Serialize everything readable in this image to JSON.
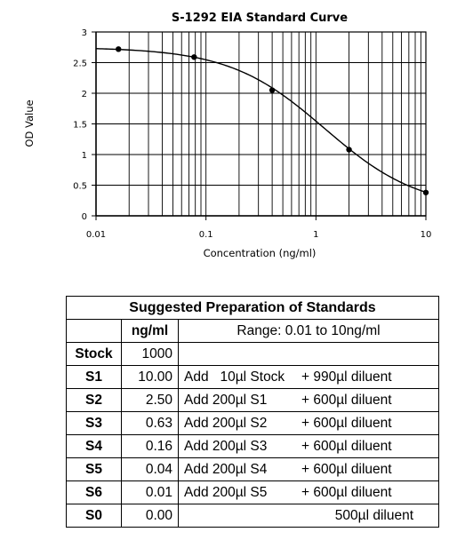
{
  "chart_data": {
    "type": "scatter",
    "title": "S-1292 EIA Standard Curve",
    "xlabel": "Concentration (ng/ml)",
    "ylabel": "OD Value",
    "x_scale": "log",
    "xlim": [
      0.01,
      10
    ],
    "ylim": [
      0,
      3
    ],
    "x_ticks": [
      "0.01",
      "0.1",
      "1",
      "10"
    ],
    "y_ticks": [
      "0",
      "0.5",
      "1",
      "1.5",
      "2",
      "2.5",
      "3"
    ],
    "grid": true,
    "series": [
      {
        "points": [
          {
            "x": 0.016,
            "y": 2.72
          },
          {
            "x": 0.078,
            "y": 2.59
          },
          {
            "x": 0.4,
            "y": 2.05
          },
          {
            "x": 2.0,
            "y": 1.08
          },
          {
            "x": 10,
            "y": 0.38
          }
        ],
        "fit_curve": {
          "type": "4pl",
          "top": 2.75,
          "bottom": 0.1,
          "ec50": 1.2,
          "hill": 1.0
        },
        "color": "#000000"
      }
    ]
  },
  "table": {
    "title": "Suggested Preparation of Standards",
    "conc_header": "ng/ml",
    "range_header": "Range: 0.01 to 10ng/ml",
    "rows": [
      {
        "label": "Stock",
        "conc": "1000",
        "add": "",
        "diluent": ""
      },
      {
        "label": "S1",
        "conc": "10.00",
        "add": "Add   10µl Stock",
        "diluent": "+ 990µl diluent"
      },
      {
        "label": "S2",
        "conc": "2.50",
        "add": "Add 200µl S1",
        "diluent": "+ 600µl diluent"
      },
      {
        "label": "S3",
        "conc": "0.63",
        "add": "Add 200µl S2",
        "diluent": "+ 600µl diluent"
      },
      {
        "label": "S4",
        "conc": "0.16",
        "add": "Add 200µl S3",
        "diluent": "+ 600µl diluent"
      },
      {
        "label": "S5",
        "conc": "0.04",
        "add": "Add 200µl S4",
        "diluent": "+ 600µl diluent"
      },
      {
        "label": "S6",
        "conc": "0.01",
        "add": "Add 200µl S5",
        "diluent": "+ 600µl diluent"
      },
      {
        "label": "S0",
        "conc": "0.00",
        "add": "",
        "diluent": "500µl diluent"
      }
    ]
  }
}
